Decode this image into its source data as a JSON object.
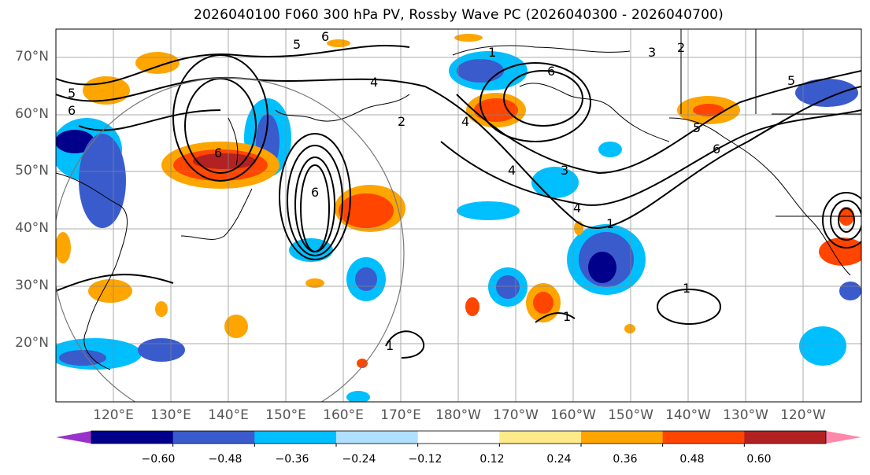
{
  "title": "2026040100 F060 300 hPa PV, Rossby Wave PC (2026040300 - 2026040700)",
  "lat_labels": [
    "70°N",
    "60°N",
    "50°N",
    "40°N",
    "30°N",
    "20°N"
  ],
  "lon_labels": [
    "120°E",
    "130°E",
    "140°E",
    "150°E",
    "160°E",
    "170°E",
    "180°W",
    "170°W",
    "160°W",
    "150°W",
    "140°W",
    "130°W",
    "120°W"
  ],
  "colorbar": {
    "ticks": [
      "−0.60",
      "−0.48",
      "−0.36",
      "−0.24",
      "−0.12",
      "0.12",
      "0.24",
      "0.36",
      "0.48",
      "0.60"
    ],
    "colors": [
      "#9932cc",
      "#00008b",
      "#3a5bcc",
      "#00bfff",
      "#b0e0ff",
      "#ffffff",
      "#ffea8a",
      "#ffa500",
      "#ff4500",
      "#b22222",
      "#ff88aa"
    ]
  },
  "contour_labels": [
    "1",
    "2",
    "3",
    "4",
    "5",
    "6"
  ]
}
